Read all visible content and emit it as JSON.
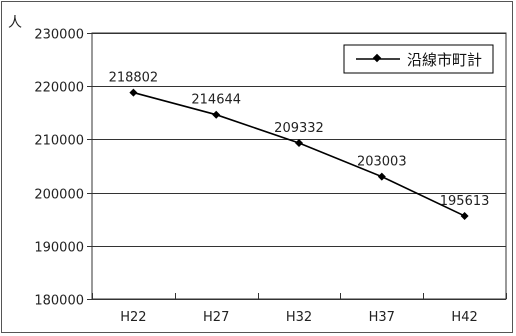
{
  "chart_data": {
    "type": "line",
    "title": "",
    "unit_label": "人",
    "categories": [
      "H22",
      "H27",
      "H32",
      "H37",
      "H42"
    ],
    "series": [
      {
        "name": "沿線市町計",
        "values": [
          218802,
          214644,
          209332,
          203003,
          195613
        ]
      }
    ],
    "data_labels": [
      "218802",
      "214644",
      "209332",
      "203003",
      "195613"
    ],
    "ylim": [
      180000,
      230000
    ],
    "yticks": [
      "180000",
      "190000",
      "200000",
      "210000",
      "220000",
      "230000"
    ],
    "grid": true,
    "legend_position": "top-right",
    "colors": {
      "line": "#000000",
      "grid": "#333333"
    }
  }
}
